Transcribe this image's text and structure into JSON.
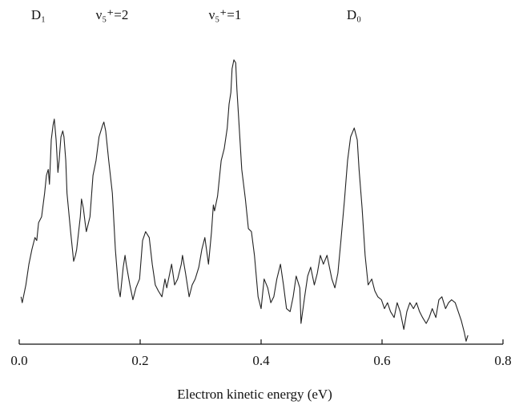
{
  "chart_data": {
    "type": "line",
    "xlabel": "Electron kinetic energy (eV)",
    "annotations": [
      "D₁",
      "ν₅⁺=2",
      "ν₅⁺=1",
      "D₀"
    ],
    "color": "#222222",
    "xlim": [
      0,
      0.8
    ],
    "xticks": [
      {
        "value": 0,
        "label": "0.0"
      },
      0.2,
      0.4,
      0.6,
      0.8
    ],
    "ylim": [
      0,
      1
    ],
    "x": [
      0.003,
      0.005,
      0.011,
      0.016,
      0.021,
      0.026,
      0.029,
      0.032,
      0.037,
      0.042,
      0.045,
      0.048,
      0.05,
      0.053,
      0.056,
      0.058,
      0.061,
      0.064,
      0.066,
      0.069,
      0.072,
      0.074,
      0.077,
      0.079,
      0.085,
      0.09,
      0.093,
      0.095,
      0.101,
      0.103,
      0.106,
      0.109,
      0.111,
      0.117,
      0.122,
      0.127,
      0.132,
      0.138,
      0.14,
      0.143,
      0.148,
      0.154,
      0.159,
      0.164,
      0.167,
      0.172,
      0.175,
      0.177,
      0.183,
      0.188,
      0.193,
      0.199,
      0.204,
      0.209,
      0.215,
      0.22,
      0.225,
      0.23,
      0.236,
      0.241,
      0.244,
      0.249,
      0.252,
      0.257,
      0.262,
      0.268,
      0.27,
      0.275,
      0.281,
      0.286,
      0.291,
      0.297,
      0.302,
      0.307,
      0.313,
      0.318,
      0.321,
      0.323,
      0.328,
      0.334,
      0.339,
      0.344,
      0.347,
      0.35,
      0.352,
      0.355,
      0.358,
      0.36,
      0.363,
      0.368,
      0.374,
      0.379,
      0.384,
      0.389,
      0.395,
      0.4,
      0.405,
      0.411,
      0.416,
      0.421,
      0.426,
      0.432,
      0.437,
      0.442,
      0.448,
      0.453,
      0.458,
      0.464,
      0.466,
      0.472,
      0.477,
      0.482,
      0.488,
      0.493,
      0.498,
      0.503,
      0.509,
      0.511,
      0.517,
      0.522,
      0.527,
      0.532,
      0.538,
      0.543,
      0.548,
      0.554,
      0.559,
      0.562,
      0.567,
      0.572,
      0.577,
      0.583,
      0.588,
      0.593,
      0.599,
      0.604,
      0.609,
      0.614,
      0.62,
      0.625,
      0.63,
      0.636,
      0.641,
      0.646,
      0.652,
      0.657,
      0.662,
      0.667,
      0.673,
      0.678,
      0.683,
      0.689,
      0.694,
      0.699,
      0.705,
      0.71,
      0.715,
      0.721,
      0.726,
      0.731,
      0.736,
      0.739,
      0.742
    ],
    "y": [
      0.16,
      0.14,
      0.2,
      0.27,
      0.32,
      0.36,
      0.35,
      0.41,
      0.43,
      0.51,
      0.57,
      0.59,
      0.54,
      0.69,
      0.74,
      0.76,
      0.69,
      0.58,
      0.62,
      0.7,
      0.72,
      0.7,
      0.62,
      0.51,
      0.38,
      0.28,
      0.3,
      0.32,
      0.43,
      0.49,
      0.46,
      0.41,
      0.38,
      0.43,
      0.57,
      0.62,
      0.7,
      0.74,
      0.75,
      0.72,
      0.62,
      0.51,
      0.32,
      0.19,
      0.16,
      0.26,
      0.3,
      0.27,
      0.2,
      0.15,
      0.19,
      0.22,
      0.35,
      0.38,
      0.36,
      0.27,
      0.2,
      0.18,
      0.16,
      0.22,
      0.19,
      0.24,
      0.27,
      0.2,
      0.22,
      0.27,
      0.3,
      0.24,
      0.16,
      0.2,
      0.22,
      0.26,
      0.32,
      0.36,
      0.27,
      0.38,
      0.47,
      0.45,
      0.5,
      0.62,
      0.66,
      0.73,
      0.81,
      0.85,
      0.93,
      0.96,
      0.95,
      0.86,
      0.76,
      0.59,
      0.49,
      0.39,
      0.38,
      0.3,
      0.16,
      0.12,
      0.22,
      0.19,
      0.14,
      0.16,
      0.22,
      0.27,
      0.2,
      0.12,
      0.11,
      0.16,
      0.23,
      0.19,
      0.07,
      0.16,
      0.23,
      0.26,
      0.2,
      0.24,
      0.3,
      0.27,
      0.3,
      0.28,
      0.22,
      0.19,
      0.24,
      0.35,
      0.49,
      0.62,
      0.7,
      0.73,
      0.69,
      0.59,
      0.46,
      0.3,
      0.2,
      0.22,
      0.18,
      0.16,
      0.15,
      0.12,
      0.14,
      0.11,
      0.09,
      0.14,
      0.11,
      0.05,
      0.11,
      0.14,
      0.12,
      0.14,
      0.11,
      0.09,
      0.07,
      0.09,
      0.12,
      0.09,
      0.15,
      0.16,
      0.12,
      0.14,
      0.15,
      0.14,
      0.11,
      0.08,
      0.04,
      0.01,
      0.03
    ]
  }
}
